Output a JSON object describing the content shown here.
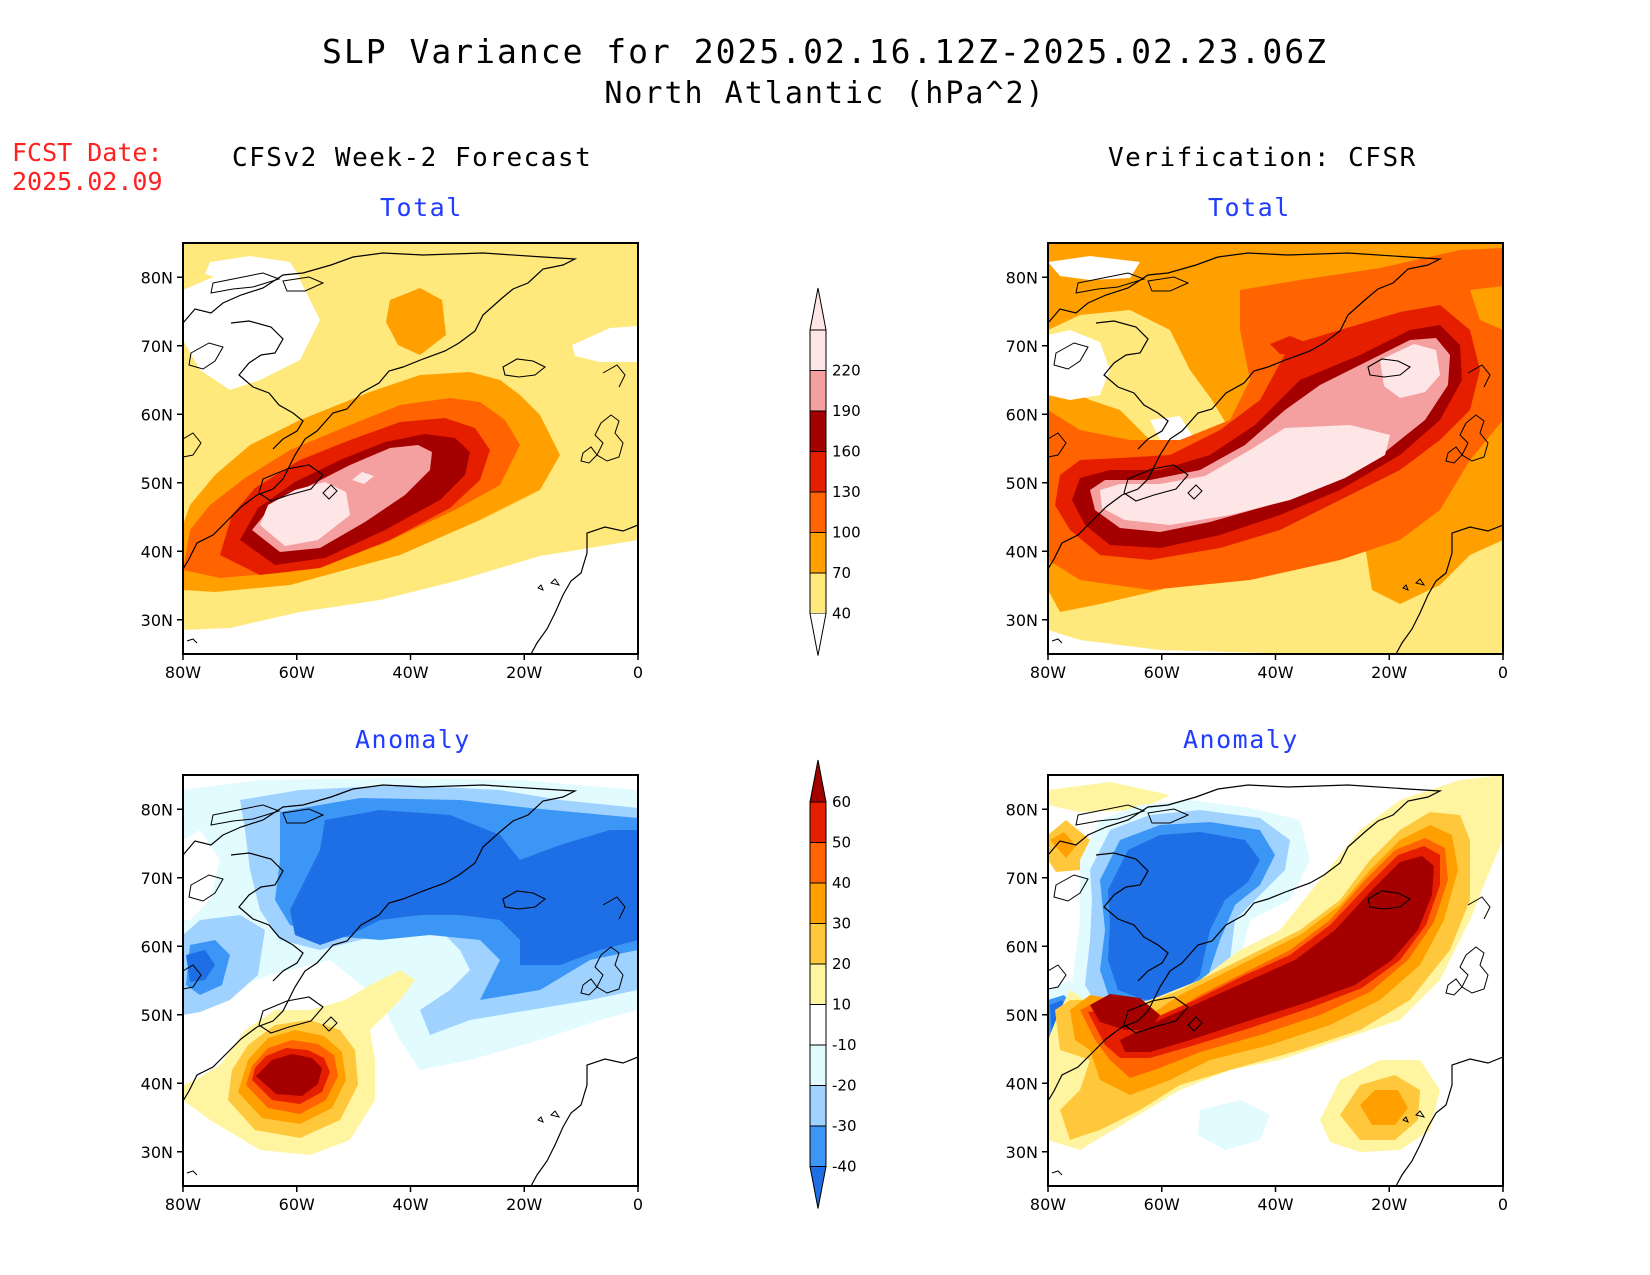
{
  "title": "SLP Variance for 2025.02.16.12Z-2025.02.23.06Z",
  "subtitle": "North Atlantic (hPa^2)",
  "fcst_label_1": "FCST Date:",
  "fcst_label_2": "2025.02.09",
  "col_left": "CFSv2 Week-2 Forecast",
  "col_right": "Verification: CFSR",
  "panel_total": "Total",
  "panel_anomaly": "Anomaly",
  "map": {
    "lon_range": [
      -80,
      0
    ],
    "lat_range": [
      25,
      85
    ],
    "lon_labels": [
      "80W",
      "60W",
      "40W",
      "20W",
      "0"
    ],
    "lat_labels": [
      "30N",
      "40N",
      "50N",
      "60N",
      "70N",
      "80N"
    ]
  },
  "total_colorbar": {
    "levels": [
      "40",
      "70",
      "100",
      "130",
      "160",
      "190",
      "220"
    ],
    "colors": [
      "#ffe87c",
      "#ffa000",
      "#ff6400",
      "#e61e00",
      "#a50000",
      "#f5a0a0",
      "#ffe6e6"
    ]
  },
  "anomaly_colorbar": {
    "levels": [
      "60",
      "50",
      "40",
      "30",
      "20",
      "10",
      "-10",
      "-20",
      "-30",
      "-40"
    ],
    "colors": [
      "#a50000",
      "#e61e00",
      "#ff6400",
      "#ffa000",
      "#ffc83c",
      "#fff5a0",
      "#ffffff",
      "#e1fbff",
      "#a0d2ff",
      "#3c96f5",
      "#1e6ee6"
    ]
  }
}
